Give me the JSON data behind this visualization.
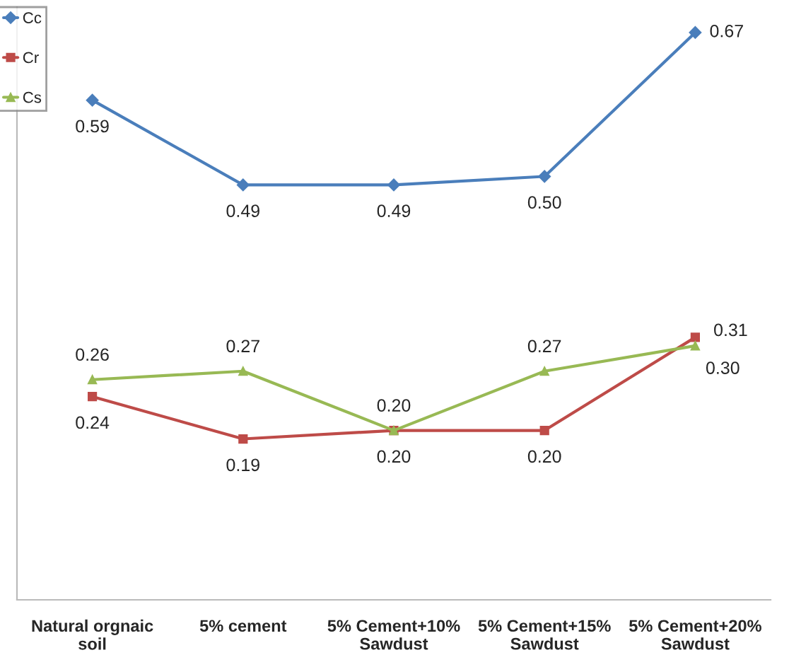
{
  "chart_data": {
    "type": "line",
    "categories": [
      "Natural orgnaic\nsoil",
      "5% cement",
      "5% Cement+10%\nSawdust",
      "5% Cement+15%\nSawdust",
      "5% Cement+20%\nSawdust"
    ],
    "series": [
      {
        "name": "Cc",
        "color": "#4a7ebb",
        "marker": "diamond",
        "values": [
          0.59,
          0.49,
          0.49,
          0.5,
          0.67
        ],
        "value_labels": [
          "0.59",
          "0.49",
          "0.49",
          "0.50",
          "0.67"
        ]
      },
      {
        "name": "Cr",
        "color": "#be4b48",
        "marker": "square",
        "values": [
          0.24,
          0.19,
          0.2,
          0.2,
          0.31
        ],
        "value_labels": [
          "0.24",
          "0.19",
          "0.20",
          "0.20",
          "0.31"
        ]
      },
      {
        "name": "Cs",
        "color": "#98b954",
        "marker": "triangle",
        "values": [
          0.26,
          0.27,
          0.2,
          0.27,
          0.3
        ],
        "value_labels": [
          "0.26",
          "0.27",
          "0.20",
          "0.27",
          "0.30"
        ]
      }
    ],
    "ylim": [
      0,
      0.7
    ],
    "tick_labels": "x",
    "legend": "top left",
    "grid": false,
    "line_style": "solid"
  }
}
